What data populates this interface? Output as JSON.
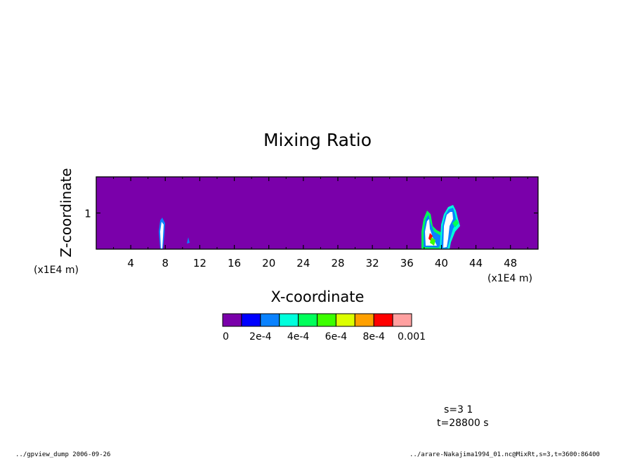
{
  "chart_data": {
    "type": "heatmap",
    "title": "Mixing Ratio",
    "xlabel": "X-coordinate",
    "ylabel": "Z-coordinate",
    "x_unit": "(x1E4 m)",
    "y_unit": "(x1E4 m)",
    "xlim": [
      0,
      51.2
    ],
    "ylim": [
      0,
      2
    ],
    "x_ticks": [
      "4",
      "8",
      "12",
      "16",
      "20",
      "24",
      "28",
      "32",
      "36",
      "40",
      "44",
      "48"
    ],
    "x_tick_values": [
      4,
      8,
      12,
      16,
      20,
      24,
      28,
      32,
      36,
      40,
      44,
      48
    ],
    "y_ticks": [
      "1"
    ],
    "y_tick_values": [
      1
    ],
    "colorbar": {
      "levels": [
        0,
        0.0001,
        0.0002,
        0.0003,
        0.0004,
        0.0005,
        0.0006,
        0.0007,
        0.0008,
        0.0009,
        0.001
      ],
      "colors": [
        "#7a00aa",
        "#0000ff",
        "#0a82ff",
        "#00ffdc",
        "#00ff5a",
        "#3cff00",
        "#dcff00",
        "#ffa000",
        "#ff0000",
        "#ffa0a0"
      ],
      "labels": [
        "0",
        "2e-4",
        "4e-4",
        "6e-4",
        "8e-4",
        "0.001"
      ],
      "label_values": [
        0,
        0.0002,
        0.0004,
        0.0006,
        0.0008,
        0.001
      ]
    },
    "background_value": 0,
    "features": [
      {
        "name": "cloud near x=7.6",
        "x_range": [
          7.2,
          7.9
        ],
        "z_range": [
          0,
          0.9
        ],
        "max_level": "> 0.001"
      },
      {
        "name": "cloud near x=38.5",
        "x_range": [
          37.5,
          39.6
        ],
        "z_range": [
          0,
          1.1
        ],
        "max_level": "> 0.001"
      },
      {
        "name": "cloud near x=40.5",
        "x_range": [
          39.8,
          41.6
        ],
        "z_range": [
          0,
          1.2
        ],
        "max_level": "> 0.001"
      }
    ]
  },
  "footer": {
    "left": "../gpview_dump  2006-09-26",
    "right": "../arare-Nakajima1994_01.nc@MixRt,s=3,t=3600:86400"
  },
  "info": {
    "line1": "s=3 1",
    "line2": "t=28800 s"
  }
}
